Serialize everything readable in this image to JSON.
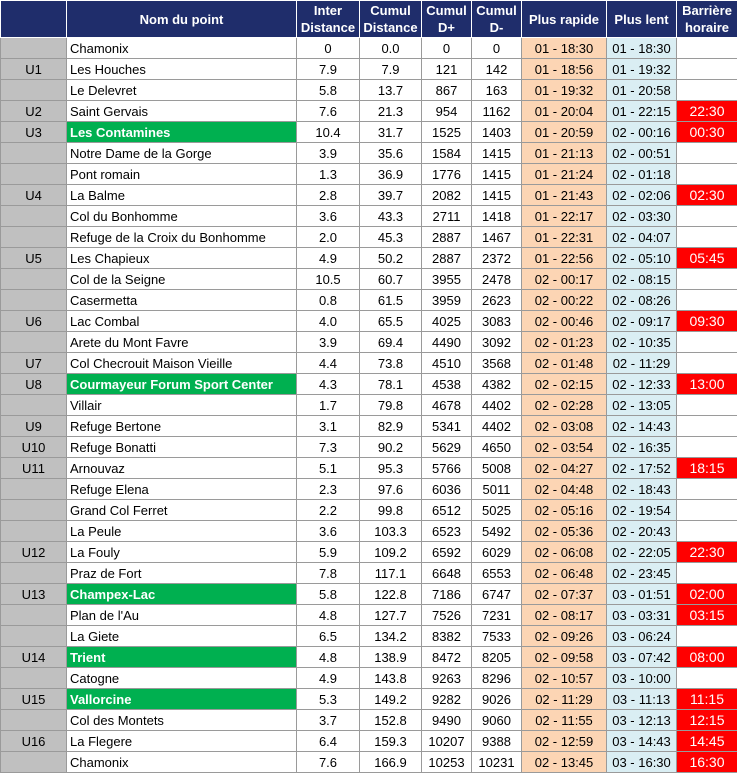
{
  "headers": {
    "name": "Nom du point",
    "inter_1": "Inter",
    "inter_2": "Distance",
    "cumul_1": "Cumul",
    "cumul_2": "Distance",
    "dplus_1": "Cumul",
    "dplus_2": "D+",
    "dminus_1": "Cumul",
    "dminus_2": "D-",
    "fast": "Plus rapide",
    "slow": "Plus lent",
    "barrier_1": "Barrière",
    "barrier_2": "horaire"
  },
  "colors": {
    "header_bg": "#1f2d6b",
    "highlight_green": "#00b050",
    "fast_bg": "#fcd5b4",
    "slow_bg": "#daeef3",
    "barrier_red": "#ff0000"
  },
  "rows": [
    {
      "code": "",
      "name": "Chamonix",
      "inter": "0",
      "cumul": "0.0",
      "dplus": "0",
      "dminus": "0",
      "fast": "01 - 18:30",
      "slow": "01 - 18:30",
      "barrier": "",
      "hl": false
    },
    {
      "code": "U1",
      "name": "Les Houches",
      "inter": "7.9",
      "cumul": "7.9",
      "dplus": "121",
      "dminus": "142",
      "fast": "01 - 18:56",
      "slow": "01 - 19:32",
      "barrier": "",
      "hl": false
    },
    {
      "code": "",
      "name": "Le Delevret",
      "inter": "5.8",
      "cumul": "13.7",
      "dplus": "867",
      "dminus": "163",
      "fast": "01 - 19:32",
      "slow": "01 - 20:58",
      "barrier": "",
      "hl": false
    },
    {
      "code": "U2",
      "name": "Saint Gervais",
      "inter": "7.6",
      "cumul": "21.3",
      "dplus": "954",
      "dminus": "1162",
      "fast": "01 - 20:04",
      "slow": "01 - 22:15",
      "barrier": "22:30",
      "hl": false
    },
    {
      "code": "U3",
      "name": "Les Contamines",
      "inter": "10.4",
      "cumul": "31.7",
      "dplus": "1525",
      "dminus": "1403",
      "fast": "01 - 20:59",
      "slow": "02 - 00:16",
      "barrier": "00:30",
      "hl": true
    },
    {
      "code": "",
      "name": "Notre Dame de la Gorge",
      "inter": "3.9",
      "cumul": "35.6",
      "dplus": "1584",
      "dminus": "1415",
      "fast": "01 - 21:13",
      "slow": "02 - 00:51",
      "barrier": "",
      "hl": false
    },
    {
      "code": "",
      "name": "Pont romain",
      "inter": "1.3",
      "cumul": "36.9",
      "dplus": "1776",
      "dminus": "1415",
      "fast": "01 - 21:24",
      "slow": "02 - 01:18",
      "barrier": "",
      "hl": false
    },
    {
      "code": "U4",
      "name": "La Balme",
      "inter": "2.8",
      "cumul": "39.7",
      "dplus": "2082",
      "dminus": "1415",
      "fast": "01 - 21:43",
      "slow": "02 - 02:06",
      "barrier": "02:30",
      "hl": false
    },
    {
      "code": "",
      "name": "Col du Bonhomme",
      "inter": "3.6",
      "cumul": "43.3",
      "dplus": "2711",
      "dminus": "1418",
      "fast": "01 - 22:17",
      "slow": "02 - 03:30",
      "barrier": "",
      "hl": false
    },
    {
      "code": "",
      "name": "Refuge de la Croix du Bonhomme",
      "inter": "2.0",
      "cumul": "45.3",
      "dplus": "2887",
      "dminus": "1467",
      "fast": "01 - 22:31",
      "slow": "02 - 04:07",
      "barrier": "",
      "hl": false
    },
    {
      "code": "U5",
      "name": "Les Chapieux",
      "inter": "4.9",
      "cumul": "50.2",
      "dplus": "2887",
      "dminus": "2372",
      "fast": "01 - 22:56",
      "slow": "02 - 05:10",
      "barrier": "05:45",
      "hl": false
    },
    {
      "code": "",
      "name": "Col de la Seigne",
      "inter": "10.5",
      "cumul": "60.7",
      "dplus": "3955",
      "dminus": "2478",
      "fast": "02 - 00:17",
      "slow": "02 - 08:15",
      "barrier": "",
      "hl": false
    },
    {
      "code": "",
      "name": "Casermetta",
      "inter": "0.8",
      "cumul": "61.5",
      "dplus": "3959",
      "dminus": "2623",
      "fast": "02 - 00:22",
      "slow": "02 - 08:26",
      "barrier": "",
      "hl": false
    },
    {
      "code": "U6",
      "name": "Lac Combal",
      "inter": "4.0",
      "cumul": "65.5",
      "dplus": "4025",
      "dminus": "3083",
      "fast": "02 - 00:46",
      "slow": "02 - 09:17",
      "barrier": "09:30",
      "hl": false
    },
    {
      "code": "",
      "name": "Arete du Mont Favre",
      "inter": "3.9",
      "cumul": "69.4",
      "dplus": "4490",
      "dminus": "3092",
      "fast": "02 - 01:23",
      "slow": "02 - 10:35",
      "barrier": "",
      "hl": false
    },
    {
      "code": "U7",
      "name": "Col Checrouit Maison Vieille",
      "inter": "4.4",
      "cumul": "73.8",
      "dplus": "4510",
      "dminus": "3568",
      "fast": "02 - 01:48",
      "slow": "02 - 11:29",
      "barrier": "",
      "hl": false
    },
    {
      "code": "U8",
      "name": "Courmayeur Forum Sport Center",
      "inter": "4.3",
      "cumul": "78.1",
      "dplus": "4538",
      "dminus": "4382",
      "fast": "02 - 02:15",
      "slow": "02 - 12:33",
      "barrier": "13:00",
      "hl": true
    },
    {
      "code": "",
      "name": "Villair",
      "inter": "1.7",
      "cumul": "79.8",
      "dplus": "4678",
      "dminus": "4402",
      "fast": "02 - 02:28",
      "slow": "02 - 13:05",
      "barrier": "",
      "hl": false
    },
    {
      "code": "U9",
      "name": "Refuge Bertone",
      "inter": "3.1",
      "cumul": "82.9",
      "dplus": "5341",
      "dminus": "4402",
      "fast": "02 - 03:08",
      "slow": "02 - 14:43",
      "barrier": "",
      "hl": false
    },
    {
      "code": "U10",
      "name": "Refuge Bonatti",
      "inter": "7.3",
      "cumul": "90.2",
      "dplus": "5629",
      "dminus": "4650",
      "fast": "02 - 03:54",
      "slow": "02 - 16:35",
      "barrier": "",
      "hl": false
    },
    {
      "code": "U11",
      "name": "Arnouvaz",
      "inter": "5.1",
      "cumul": "95.3",
      "dplus": "5766",
      "dminus": "5008",
      "fast": "02 - 04:27",
      "slow": "02 - 17:52",
      "barrier": "18:15",
      "hl": false
    },
    {
      "code": "",
      "name": "Refuge Elena",
      "inter": "2.3",
      "cumul": "97.6",
      "dplus": "6036",
      "dminus": "5011",
      "fast": "02 - 04:48",
      "slow": "02 - 18:43",
      "barrier": "",
      "hl": false
    },
    {
      "code": "",
      "name": "Grand Col Ferret",
      "inter": "2.2",
      "cumul": "99.8",
      "dplus": "6512",
      "dminus": "5025",
      "fast": "02 - 05:16",
      "slow": "02 - 19:54",
      "barrier": "",
      "hl": false
    },
    {
      "code": "",
      "name": "La Peule",
      "inter": "3.6",
      "cumul": "103.3",
      "dplus": "6523",
      "dminus": "5492",
      "fast": "02 - 05:36",
      "slow": "02 - 20:43",
      "barrier": "",
      "hl": false
    },
    {
      "code": "U12",
      "name": "La Fouly",
      "inter": "5.9",
      "cumul": "109.2",
      "dplus": "6592",
      "dminus": "6029",
      "fast": "02 - 06:08",
      "slow": "02 - 22:05",
      "barrier": "22:30",
      "hl": false
    },
    {
      "code": "",
      "name": "Praz de Fort",
      "inter": "7.8",
      "cumul": "117.1",
      "dplus": "6648",
      "dminus": "6553",
      "fast": "02 - 06:48",
      "slow": "02 - 23:45",
      "barrier": "",
      "hl": false
    },
    {
      "code": "U13",
      "name": "Champex-Lac",
      "inter": "5.8",
      "cumul": "122.8",
      "dplus": "7186",
      "dminus": "6747",
      "fast": "02 - 07:37",
      "slow": "03 - 01:51",
      "barrier": "02:00",
      "hl": true
    },
    {
      "code": "",
      "name": "Plan de l'Au",
      "inter": "4.8",
      "cumul": "127.7",
      "dplus": "7526",
      "dminus": "7231",
      "fast": "02 - 08:17",
      "slow": "03 - 03:31",
      "barrier": "03:15",
      "hl": false
    },
    {
      "code": "",
      "name": "La Giete",
      "inter": "6.5",
      "cumul": "134.2",
      "dplus": "8382",
      "dminus": "7533",
      "fast": "02 - 09:26",
      "slow": "03 - 06:24",
      "barrier": "",
      "hl": false
    },
    {
      "code": "U14",
      "name": "Trient",
      "inter": "4.8",
      "cumul": "138.9",
      "dplus": "8472",
      "dminus": "8205",
      "fast": "02 - 09:58",
      "slow": "03 - 07:42",
      "barrier": "08:00",
      "hl": true
    },
    {
      "code": "",
      "name": "Catogne",
      "inter": "4.9",
      "cumul": "143.8",
      "dplus": "9263",
      "dminus": "8296",
      "fast": "02 - 10:57",
      "slow": "03 - 10:00",
      "barrier": "",
      "hl": false
    },
    {
      "code": "U15",
      "name": "Vallorcine",
      "inter": "5.3",
      "cumul": "149.2",
      "dplus": "9282",
      "dminus": "9026",
      "fast": "02 - 11:29",
      "slow": "03 - 11:13",
      "barrier": "11:15",
      "hl": true
    },
    {
      "code": "",
      "name": "Col des Montets",
      "inter": "3.7",
      "cumul": "152.8",
      "dplus": "9490",
      "dminus": "9060",
      "fast": "02 - 11:55",
      "slow": "03 - 12:13",
      "barrier": "12:15",
      "hl": false
    },
    {
      "code": "U16",
      "name": "La Flegere",
      "inter": "6.4",
      "cumul": "159.3",
      "dplus": "10207",
      "dminus": "9388",
      "fast": "02 - 12:59",
      "slow": "03 - 14:43",
      "barrier": "14:45",
      "hl": false
    },
    {
      "code": "",
      "name": "Chamonix",
      "inter": "7.6",
      "cumul": "166.9",
      "dplus": "10253",
      "dminus": "10231",
      "fast": "02 - 13:45",
      "slow": "03 - 16:30",
      "barrier": "16:30",
      "hl": false
    }
  ]
}
